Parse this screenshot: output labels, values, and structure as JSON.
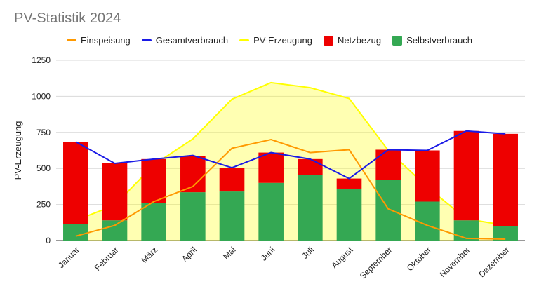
{
  "chart_data": {
    "type": "bar",
    "title": "PV-Statistik 2024",
    "ylabel": "PV-Erzeugung",
    "ylim": [
      0,
      1250
    ],
    "yticks": [
      0,
      250,
      500,
      750,
      1000,
      1250
    ],
    "grid": true,
    "legend_position": "top",
    "categories": [
      "Januar",
      "Februar",
      "März",
      "April",
      "Mai",
      "Juni",
      "Juli",
      "August",
      "September",
      "Oktober",
      "November",
      "Dezember"
    ],
    "series": [
      {
        "name": "Einspeisung",
        "kind": "line",
        "color": "#ff9900",
        "values": [
          30,
          105,
          270,
          375,
          640,
          700,
          610,
          630,
          220,
          105,
          15,
          10
        ]
      },
      {
        "name": "Gesamtverbrauch",
        "kind": "line",
        "color": "#1a1ae6",
        "values": [
          685,
          535,
          565,
          590,
          505,
          610,
          565,
          430,
          630,
          625,
          760,
          740
        ]
      },
      {
        "name": "PV-Erzeugung",
        "kind": "area",
        "color": "#ffff00",
        "values": [
          140,
          245,
          525,
          705,
          980,
          1095,
          1060,
          985,
          625,
          370,
          150,
          105
        ]
      },
      {
        "name": "Netzbezug",
        "kind": "stacked-bar",
        "color": "#ee0000",
        "values": [
          570,
          395,
          305,
          250,
          165,
          210,
          110,
          70,
          210,
          355,
          620,
          640
        ]
      },
      {
        "name": "Selbstverbrauch",
        "kind": "stacked-bar",
        "color": "#34a853",
        "values": [
          115,
          140,
          260,
          335,
          340,
          400,
          455,
          360,
          420,
          270,
          140,
          100
        ]
      }
    ]
  }
}
